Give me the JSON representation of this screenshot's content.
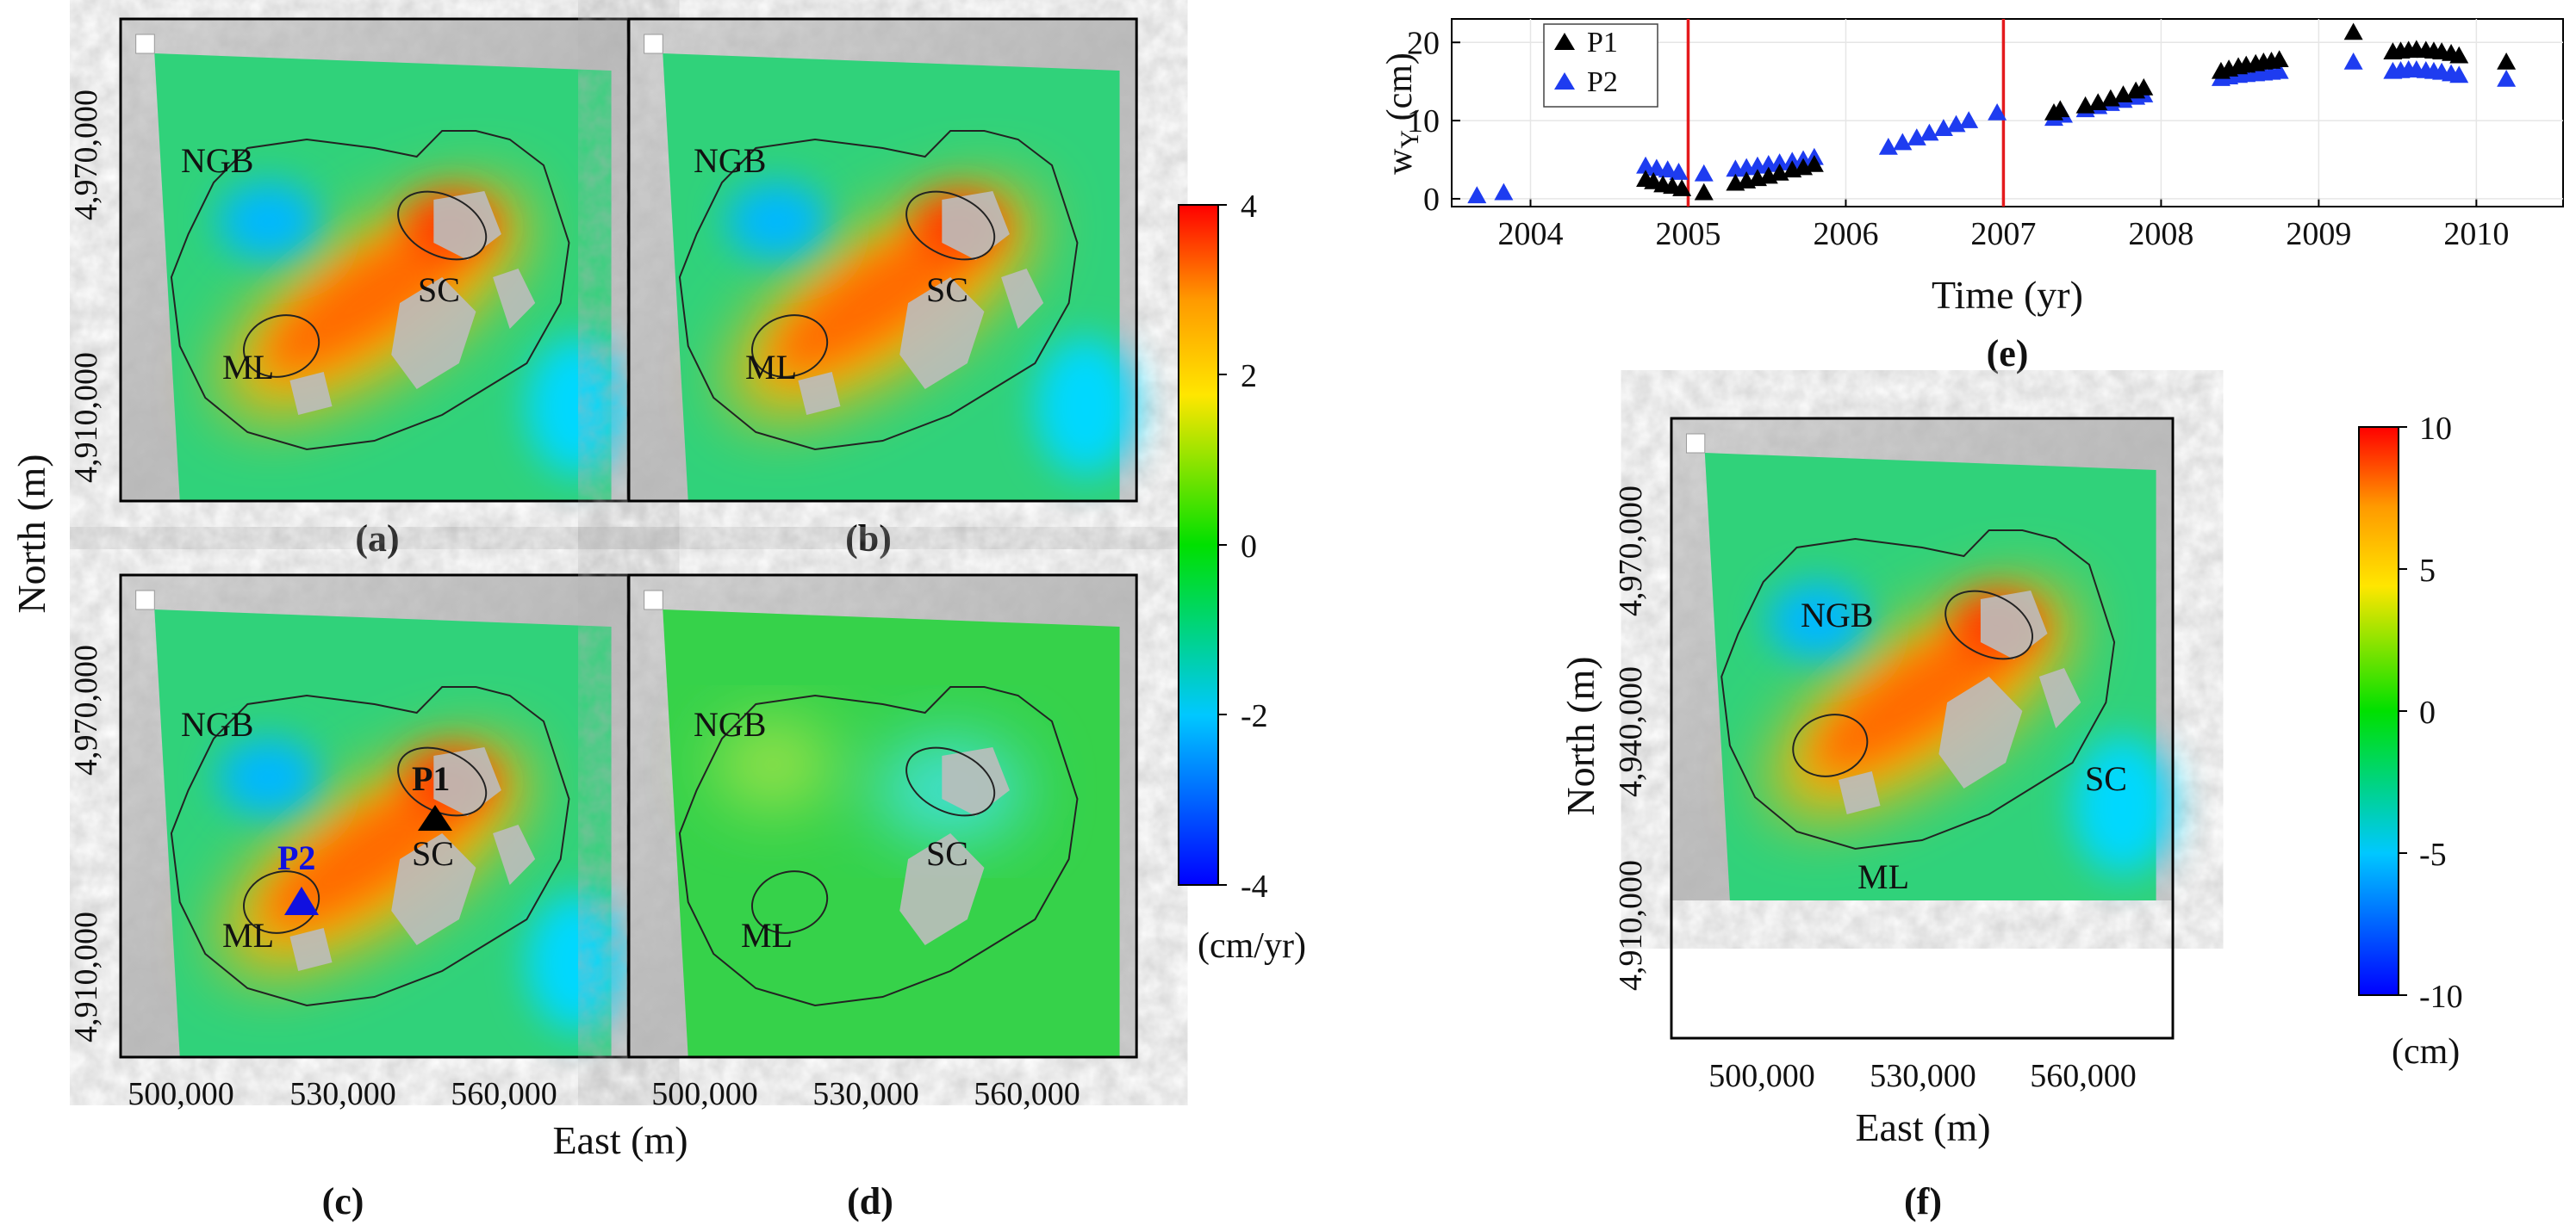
{
  "chart_data": [
    {
      "type": "heatmap",
      "panel": "(a)",
      "ylabel": "North (m)",
      "yticks": [
        "4,910,000",
        "4,970,000"
      ],
      "places": [
        "NGB",
        "SC",
        "ML"
      ],
      "field": "positive"
    },
    {
      "type": "heatmap",
      "panel": "(b)",
      "places": [
        "NGB",
        "SC",
        "ML"
      ],
      "field": "positive"
    },
    {
      "type": "heatmap",
      "panel": "(c)",
      "yticks": [
        "4,910,000",
        "4,970,000"
      ],
      "xticks": [
        "500,000",
        "530,000",
        "560,000"
      ],
      "places": [
        "NGB",
        "SC",
        "ML"
      ],
      "markers": [
        {
          "name": "P1",
          "color": "#000000"
        },
        {
          "name": "P2",
          "color": "#1010e0"
        }
      ],
      "field": "positive"
    },
    {
      "type": "heatmap",
      "panel": "(d)",
      "xticks": [
        "500,000",
        "530,000",
        "560,000"
      ],
      "places": [
        "NGB",
        "SC",
        "ML"
      ],
      "field": "weak"
    },
    {
      "type": "colorbar",
      "ticks": [
        "4",
        "2",
        "0",
        "-2",
        "-4"
      ],
      "range": [
        -4,
        4
      ],
      "unit": "(cm/yr)"
    },
    {
      "type": "scatter",
      "panel": "(e)",
      "xlabel": "Time (yr)",
      "ylabel_main": "w",
      "ylabel_sub": "Y",
      "ylabel_unit": " (cm)",
      "xlim": [
        2003.5,
        2010.55
      ],
      "ylim": [
        -1,
        23
      ],
      "xticks": [
        "2004",
        "2005",
        "2006",
        "2007",
        "2008",
        "2009",
        "2010"
      ],
      "yticks": [
        "0",
        "10",
        "20"
      ],
      "vlines": [
        2005.0,
        2007.0
      ],
      "vline_color": "#e41a1c",
      "series": [
        {
          "name": "P1",
          "color": "#000000",
          "x": [
            2004.73,
            2004.78,
            2004.84,
            2004.9,
            2004.96,
            2005.1,
            2005.3,
            2005.37,
            2005.44,
            2005.51,
            2005.58,
            2005.66,
            2005.73,
            2005.8,
            2007.32,
            2007.36,
            2007.52,
            2007.6,
            2007.68,
            2007.76,
            2007.84,
            2007.89,
            2008.38,
            2008.43,
            2008.49,
            2008.54,
            2008.6,
            2008.65,
            2008.7,
            2008.75,
            2009.22,
            2009.47,
            2009.52,
            2009.57,
            2009.62,
            2009.68,
            2009.73,
            2009.78,
            2009.84,
            2009.89,
            2010.19
          ],
          "y": [
            2.5,
            2.2,
            1.8,
            1.6,
            1.3,
            0.8,
            2.0,
            2.3,
            2.6,
            2.9,
            3.3,
            3.7,
            4.0,
            4.4,
            11.0,
            11.4,
            11.9,
            12.3,
            12.8,
            13.3,
            13.8,
            14.2,
            16.3,
            16.6,
            16.9,
            17.1,
            17.3,
            17.5,
            17.6,
            17.8,
            21.3,
            18.8,
            18.9,
            19.0,
            19.1,
            19.0,
            18.9,
            18.8,
            18.6,
            18.3,
            17.5
          ]
        },
        {
          "name": "P2",
          "color": "#1e3cf0",
          "x": [
            2003.66,
            2003.83,
            2004.73,
            2004.8,
            2004.87,
            2004.94,
            2005.1,
            2005.3,
            2005.37,
            2005.44,
            2005.51,
            2005.58,
            2005.66,
            2005.73,
            2005.8,
            2006.27,
            2006.36,
            2006.45,
            2006.53,
            2006.62,
            2006.7,
            2006.78,
            2006.96,
            2007.32,
            2007.38,
            2007.52,
            2007.6,
            2007.68,
            2007.76,
            2007.84,
            2007.89,
            2008.38,
            2008.43,
            2008.49,
            2008.54,
            2008.6,
            2008.65,
            2008.7,
            2008.75,
            2009.22,
            2009.47,
            2009.52,
            2009.57,
            2009.62,
            2009.68,
            2009.73,
            2009.78,
            2009.84,
            2009.89,
            2010.19
          ],
          "y": [
            0.4,
            0.8,
            4.2,
            3.9,
            3.7,
            3.4,
            3.2,
            3.8,
            4.0,
            4.2,
            4.4,
            4.6,
            4.8,
            5.0,
            5.3,
            6.6,
            7.2,
            7.8,
            8.4,
            9.0,
            9.5,
            10.0,
            11.0,
            10.3,
            10.7,
            11.4,
            11.8,
            12.2,
            12.6,
            13.0,
            13.3,
            15.4,
            15.6,
            15.8,
            15.9,
            16.0,
            16.1,
            16.2,
            16.3,
            17.5,
            16.3,
            16.4,
            16.5,
            16.5,
            16.4,
            16.3,
            16.2,
            16.0,
            15.8,
            15.3
          ]
        }
      ]
    },
    {
      "type": "heatmap",
      "panel": "(f)",
      "xlabel": "East (m)",
      "ylabel": "North (m)",
      "yticks": [
        "4,910,000",
        "4,940,000",
        "4,970,000"
      ],
      "xticks": [
        "500,000",
        "530,000",
        "560,000"
      ],
      "places": [
        "NGB",
        "SC",
        "ML"
      ],
      "field": "positive"
    },
    {
      "type": "colorbar",
      "ticks": [
        "10",
        "5",
        "0",
        "-5",
        "-10"
      ],
      "range": [
        -10,
        10
      ],
      "unit": "(cm)"
    }
  ],
  "labels": {
    "shared_ylabel": "North (m)",
    "shared_xlabel": "East (m)"
  }
}
